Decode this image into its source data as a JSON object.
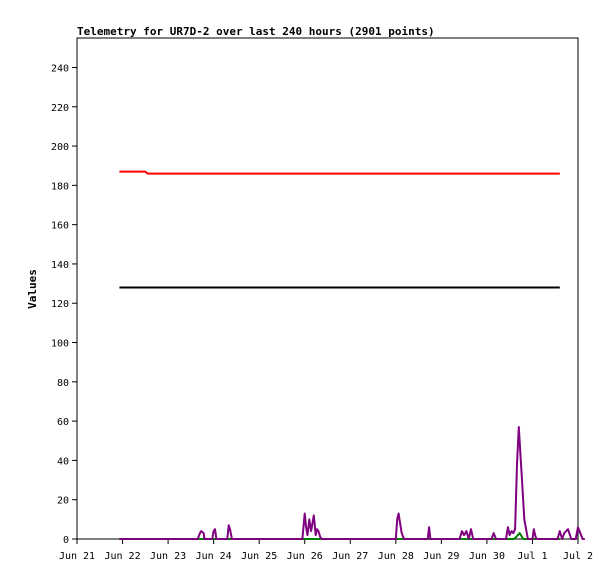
{
  "chart_data": {
    "type": "line",
    "title": "Telemetry for UR7D-2 over last 240 hours (2901 points)",
    "xlabel": "",
    "ylabel": "Values",
    "x_unit": "day",
    "x_range_days": [
      21,
      32
    ],
    "categories": [
      "Jun 21",
      "Jun 22",
      "Jun 23",
      "Jun 24",
      "Jun 25",
      "Jun 26",
      "Jun 27",
      "Jun 28",
      "Jun 29",
      "Jun 30",
      "Jul 1",
      "Jul 2"
    ],
    "ylim": [
      0,
      255
    ],
    "yticks": [
      0,
      20,
      40,
      60,
      80,
      100,
      120,
      140,
      160,
      180,
      200,
      220,
      240
    ],
    "grid": false,
    "legend": "none",
    "series": [
      {
        "color": "#ff0000",
        "x": [
          21.93,
          22.5,
          22.55,
          22.9,
          23.8,
          27.9,
          29.0,
          29.6,
          29.9,
          30.9,
          31.6
        ],
        "values": [
          187,
          187,
          186,
          186,
          186,
          186,
          186,
          186,
          186,
          186,
          186
        ]
      },
      {
        "color": "#000000",
        "x": [
          21.93,
          31.6
        ],
        "values": [
          128,
          128
        ]
      },
      {
        "color": "#008000",
        "x": [
          21.93,
          30.6,
          30.68,
          30.72,
          30.8,
          31.6
        ],
        "values": [
          0,
          0,
          2,
          3,
          0,
          0
        ]
      },
      {
        "color": "#800080",
        "x": [
          21.93,
          23.65,
          23.7,
          23.73,
          23.78,
          23.8,
          23.97,
          24.0,
          24.03,
          24.06,
          24.3,
          24.33,
          24.36,
          24.4,
          25.95,
          26.0,
          26.03,
          26.06,
          26.1,
          26.14,
          26.2,
          26.24,
          26.27,
          26.3,
          26.34,
          26.38,
          28.0,
          28.03,
          28.06,
          28.1,
          28.13,
          28.18,
          28.7,
          28.73,
          28.76,
          29.4,
          29.45,
          29.5,
          29.55,
          29.6,
          29.65,
          29.7,
          30.1,
          30.15,
          30.2,
          30.42,
          30.46,
          30.5,
          30.54,
          30.58,
          30.62,
          30.66,
          30.7,
          30.73,
          30.77,
          30.82,
          30.9,
          31.0,
          31.03,
          31.07,
          31.1,
          31.55,
          31.6,
          31.65,
          31.7,
          31.78,
          31.85,
          31.95,
          32.0,
          32.05,
          32.1,
          32.15
        ],
        "values": [
          0,
          0,
          3,
          4,
          3,
          0,
          0,
          4,
          5,
          0,
          0,
          7,
          5,
          0,
          0,
          13,
          6,
          2,
          10,
          4,
          12,
          2,
          5,
          4,
          1,
          0,
          0,
          10,
          13,
          7,
          3,
          0,
          0,
          6,
          0,
          0,
          4,
          2,
          4,
          0,
          5,
          0,
          0,
          3,
          0,
          0,
          6,
          2,
          4,
          3,
          5,
          38,
          57,
          45,
          30,
          10,
          0,
          0,
          5,
          1,
          0,
          0,
          4,
          0,
          3,
          5,
          0,
          0,
          6,
          3,
          0,
          0
        ]
      }
    ]
  }
}
